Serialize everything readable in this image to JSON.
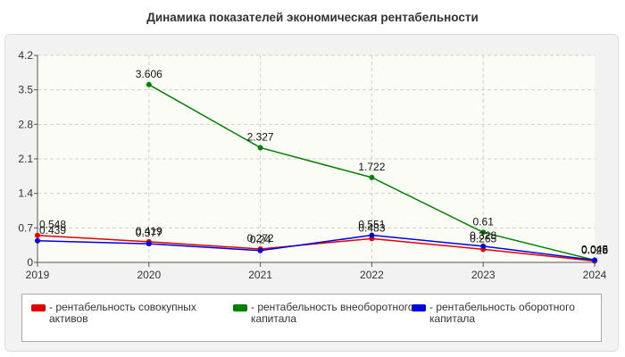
{
  "chart_data": {
    "type": "line",
    "title": "Динамика показателей экономическая рентабельности",
    "categories": [
      "2019",
      "2020",
      "2021",
      "2022",
      "2023",
      "2024"
    ],
    "yticks": [
      "0",
      "0.7",
      "1.4",
      "2.1",
      "2.8",
      "3.5",
      "4.2"
    ],
    "ylim": [
      0,
      4.2
    ],
    "grid": true,
    "legend_position": "bottom",
    "series": [
      {
        "name": "- рентабельность совокупных активов",
        "color": "#e00000",
        "values": [
          0.548,
          0.419,
          0.272,
          0.483,
          0.265,
          0.028
        ],
        "labels": [
          "0.548",
          "0.419",
          "0.272",
          "0.483",
          "0.265",
          "0.028"
        ]
      },
      {
        "name": "- рентабельность внеоборотного капитала",
        "color": "#008000",
        "values": [
          null,
          3.606,
          2.327,
          1.722,
          0.61,
          0.046
        ],
        "labels": [
          "",
          "3.606",
          "2.327",
          "1.722",
          "0.61",
          "0.046"
        ]
      },
      {
        "name": "- рентабельность оборотного капитала",
        "color": "#0000e0",
        "values": [
          0.439,
          0.377,
          0.24,
          0.551,
          0.328,
          0.045
        ],
        "labels": [
          "0.439",
          "0.377",
          "0.24",
          "0.551",
          "0.328",
          "0.045"
        ]
      }
    ]
  }
}
